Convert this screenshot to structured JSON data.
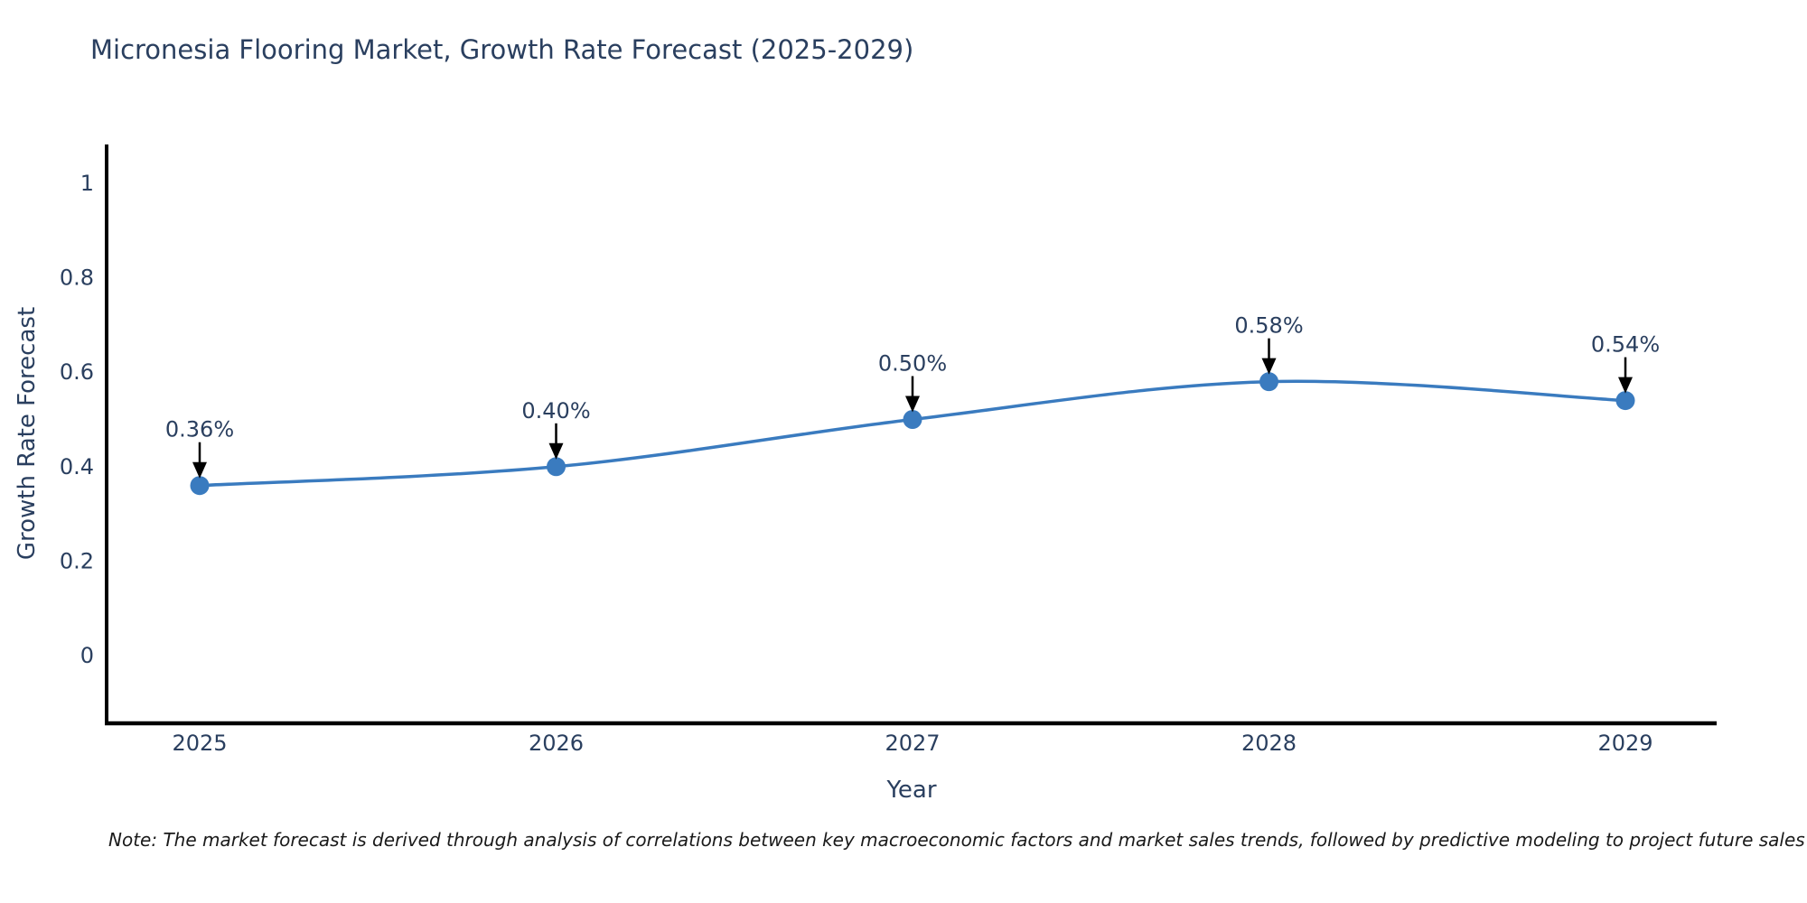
{
  "title": "Micronesia Flooring Market, Growth Rate Forecast (2025-2029)",
  "note": "Note: The market forecast is derived through analysis of correlations between key macroeconomic factors and market sales trends, followed by predictive modeling to project future sales",
  "chart_data": {
    "type": "line",
    "title": "Micronesia Flooring Market, Growth Rate Forecast (2025-2029)",
    "xlabel": "Year",
    "ylabel": "Growth Rate Forecast",
    "categories": [
      "2025",
      "2026",
      "2027",
      "2028",
      "2029"
    ],
    "x": [
      2025,
      2026,
      2027,
      2028,
      2029
    ],
    "series": [
      {
        "name": "Growth Rate Forecast",
        "values": [
          0.36,
          0.4,
          0.5,
          0.58,
          0.54
        ]
      }
    ],
    "point_labels": [
      "0.36%",
      "0.40%",
      "0.50%",
      "0.58%",
      "0.54%"
    ],
    "yticks": [
      0,
      0.2,
      0.4,
      0.6,
      0.8,
      1
    ],
    "ytick_labels": [
      "0",
      "0.2",
      "0.4",
      "0.6",
      "0.8",
      "1"
    ],
    "ylim": [
      -0.14,
      1.08
    ],
    "grid": false,
    "legend": false,
    "line_shape": "spline",
    "line_color": "#3a7bbf",
    "marker_color": "#3a7bbf",
    "axis_color": "#000000",
    "text_color": "#2a3f5f",
    "annotation_arrow_color": "#000000"
  }
}
